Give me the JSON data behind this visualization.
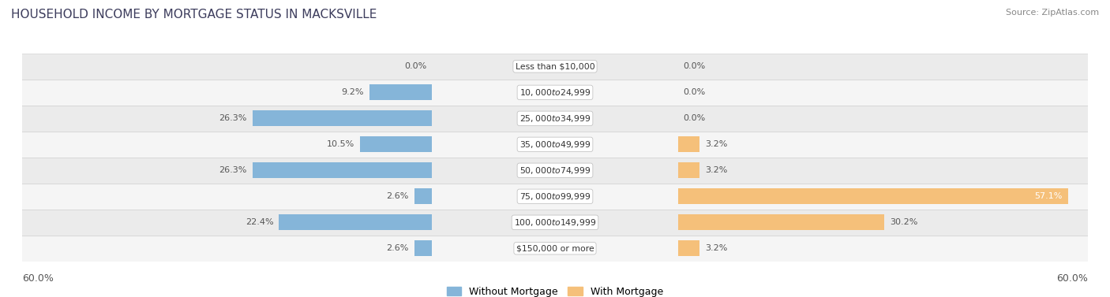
{
  "title": "HOUSEHOLD INCOME BY MORTGAGE STATUS IN MACKSVILLE",
  "source": "Source: ZipAtlas.com",
  "categories": [
    "Less than $10,000",
    "$10,000 to $24,999",
    "$25,000 to $34,999",
    "$35,000 to $49,999",
    "$50,000 to $74,999",
    "$75,000 to $99,999",
    "$100,000 to $149,999",
    "$150,000 or more"
  ],
  "without_mortgage": [
    0.0,
    9.2,
    26.3,
    10.5,
    26.3,
    2.6,
    22.4,
    2.6
  ],
  "with_mortgage": [
    0.0,
    0.0,
    0.0,
    3.2,
    3.2,
    57.1,
    30.2,
    3.2
  ],
  "color_without": "#85b5d9",
  "color_with": "#f5c07a",
  "xlim": 60.0,
  "legend_without": "Without Mortgage",
  "legend_with": "With Mortgage",
  "title_color": "#3c3c5c",
  "source_color": "#888888",
  "label_color": "#555555",
  "bar_height": 0.6,
  "row_colors": [
    "#ebebeb",
    "#f5f5f5",
    "#ebebeb",
    "#f5f5f5",
    "#ebebeb",
    "#f5f5f5",
    "#ebebeb",
    "#f5f5f5"
  ]
}
